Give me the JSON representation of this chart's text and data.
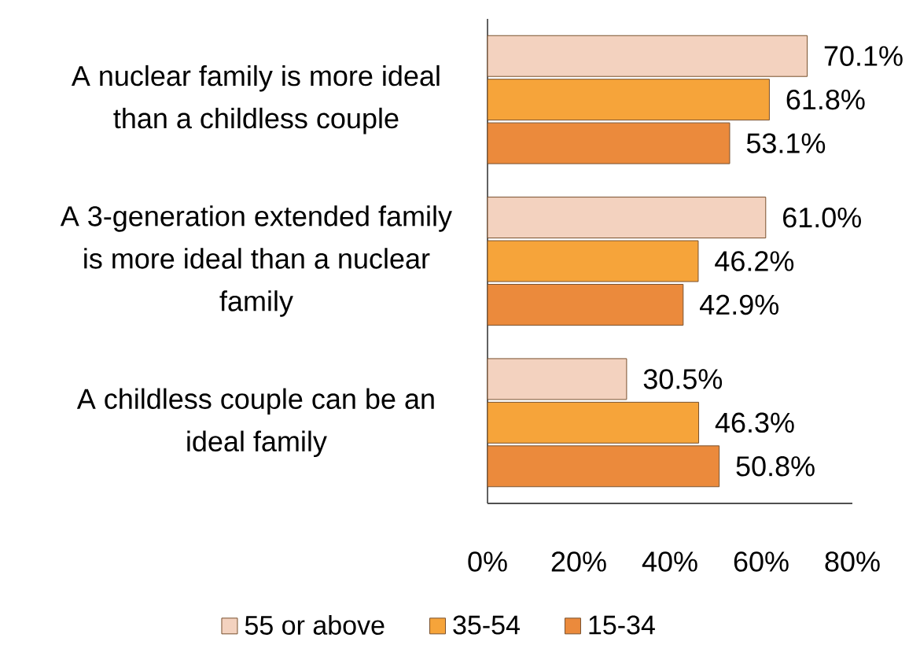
{
  "chart_data": {
    "type": "bar",
    "orientation": "horizontal",
    "categories": [
      "A nuclear family is more ideal than a childless couple",
      "A 3-generation extended family is more ideal than a nuclear family",
      "A childless couple can be an ideal family"
    ],
    "series": [
      {
        "name": "55 or above",
        "color": "#f3d2bf",
        "values": [
          70.1,
          61.0,
          30.5
        ],
        "value_labels": [
          "70.1%",
          "61.0%",
          "30.5%"
        ]
      },
      {
        "name": "35-54",
        "color": "#f6a43a",
        "values": [
          61.8,
          46.2,
          46.3
        ],
        "value_labels": [
          "61.8%",
          "46.2%",
          "46.3%"
        ]
      },
      {
        "name": "15-34",
        "color": "#eb8a3c",
        "values": [
          53.1,
          42.9,
          50.8
        ],
        "value_labels": [
          "53.1%",
          "42.9%",
          "50.8%"
        ]
      }
    ],
    "xlim": [
      0,
      80
    ],
    "xticks": [
      {
        "value": 0,
        "label": "0%"
      },
      {
        "value": 20,
        "label": "20%"
      },
      {
        "value": 40,
        "label": "40%"
      },
      {
        "value": 60,
        "label": "60%"
      },
      {
        "value": 80,
        "label": "80%"
      }
    ],
    "legend": "bottom"
  }
}
